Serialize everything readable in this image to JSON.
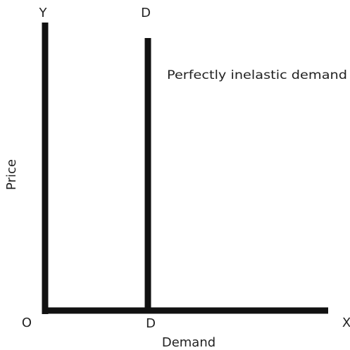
{
  "diagram": {
    "y_axis_end_label": "Y",
    "x_axis_end_label": "X",
    "origin_label": "O",
    "demand_curve_top_label": "D",
    "demand_curve_bottom_label": "D",
    "curve_annotation": "Perfectly inelastic demand",
    "y_axis_title": "Price",
    "x_axis_title": "Demand",
    "line_color": "#111111",
    "text_color": "#222222"
  }
}
